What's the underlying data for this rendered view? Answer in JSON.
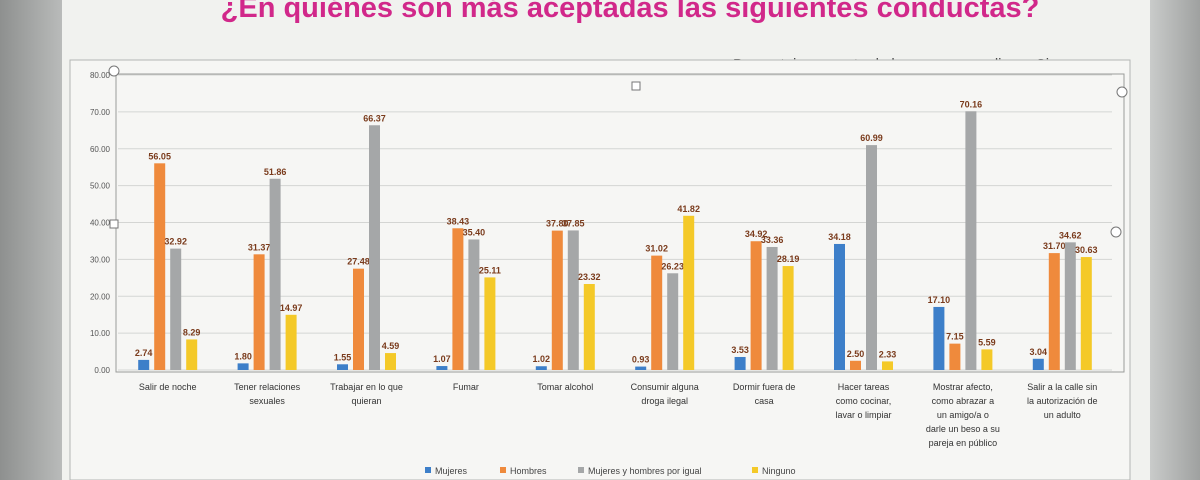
{
  "slide": {
    "title": "¿En quiénes son más aceptadas las siguientes conductas?",
    "subtitle": "Porcentaje respecto de los que respondieron Si"
  },
  "colors": {
    "Mujeres": "#3d7fc9",
    "Hombres": "#ef8a3c",
    "igual": "#a5a7a8",
    "Ninguno": "#f4c928"
  },
  "chart_data": {
    "type": "bar",
    "ylim": [
      0,
      80
    ],
    "yticks": [
      "0.00",
      "10.00",
      "20.00",
      "30.00",
      "40.00",
      "50.00",
      "60.00",
      "70.00",
      "80.00"
    ],
    "categories": [
      [
        "Salir de noche"
      ],
      [
        "Tener relaciones",
        "sexuales"
      ],
      [
        "Trabajar en lo que",
        "quieran"
      ],
      [
        "Fumar"
      ],
      [
        "Tomar alcohol"
      ],
      [
        "Consumir alguna",
        "droga ilegal"
      ],
      [
        "Dormir fuera de",
        "casa"
      ],
      [
        "Hacer tareas",
        "como cocinar,",
        "lavar o limpiar"
      ],
      [
        "Mostrar afecto,",
        "como abrazar a",
        "un amigo/a o",
        "darle un beso a su",
        "pareja en público"
      ],
      [
        "Salir a la calle sin",
        "la autorización de",
        "un adulto"
      ]
    ],
    "series": [
      {
        "name": "Mujeres",
        "values": [
          2.74,
          1.8,
          1.55,
          1.07,
          1.02,
          0.93,
          3.53,
          34.18,
          17.1,
          3.04
        ]
      },
      {
        "name": "Hombres",
        "values": [
          56.05,
          31.37,
          27.48,
          38.43,
          37.8,
          31.02,
          34.92,
          2.5,
          7.15,
          31.7
        ]
      },
      {
        "name": "Mujeres y hombres por igual",
        "values": [
          32.92,
          51.86,
          66.37,
          35.4,
          37.85,
          26.23,
          33.36,
          60.99,
          70.16,
          34.62
        ]
      },
      {
        "name": "Ninguno",
        "values": [
          8.29,
          14.97,
          4.59,
          25.11,
          23.32,
          41.82,
          28.19,
          2.33,
          5.59,
          30.63
        ]
      }
    ],
    "labels": [
      [
        "2.74",
        "1.80",
        "1.55",
        "1.07",
        "1.02",
        "0.93",
        "3.53",
        "34.18",
        "17.10",
        "3.04"
      ],
      [
        "56.05",
        "31.37",
        "27.48",
        "38.43",
        "37.80",
        "31.02",
        "34.92",
        "2.50",
        "7.15",
        "31.70"
      ],
      [
        "32.92",
        "51.86",
        "66.37",
        "35.40",
        "37.85",
        "26.23",
        "33.36",
        "60.99",
        "70.16",
        "34.62"
      ],
      [
        "8.29",
        "14.97",
        "4.59",
        "25.11",
        "23.32",
        "41.82",
        "28.19",
        "2.33",
        "5.59",
        "30.63"
      ]
    ],
    "legend_position": "bottom",
    "grid": true
  }
}
